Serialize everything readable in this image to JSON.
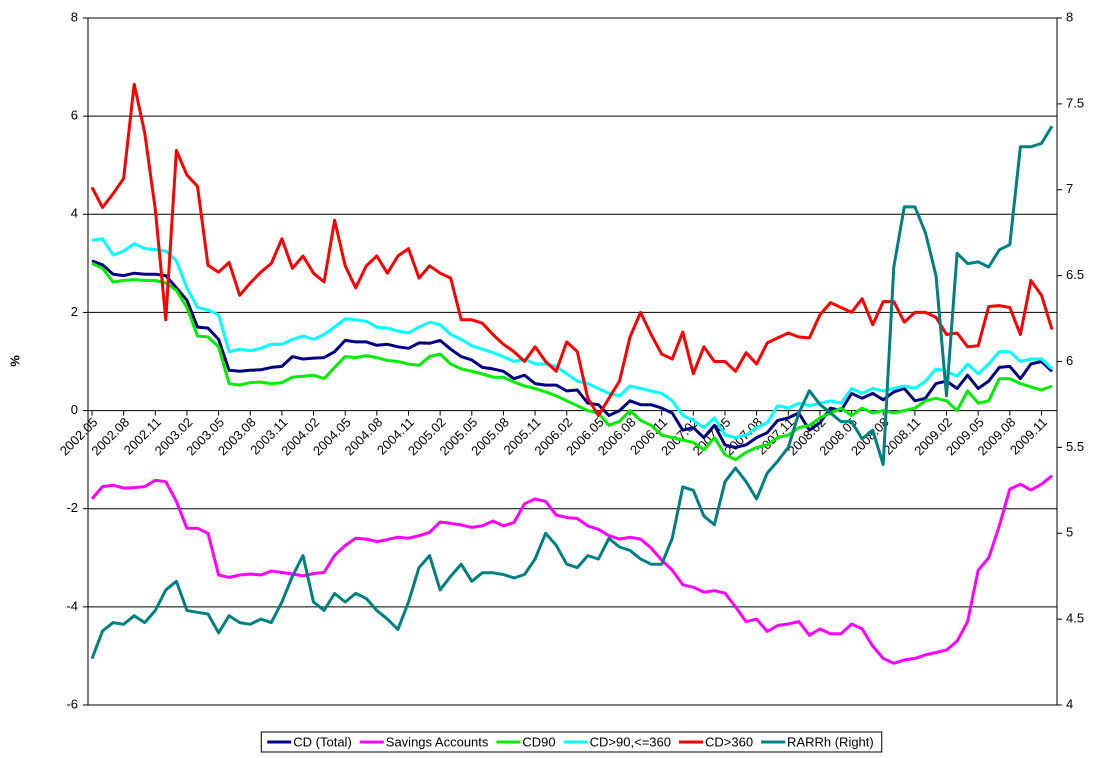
{
  "chart_data": {
    "type": "line",
    "y_label": "%",
    "categories": [
      "2002.05",
      null,
      null,
      "2002.08",
      null,
      null,
      "2002.11",
      null,
      null,
      "2003.02",
      null,
      null,
      "2003.05",
      null,
      null,
      "2003.08",
      null,
      null,
      "2003.11",
      null,
      null,
      "2004.02",
      null,
      null,
      "2004.05",
      null,
      null,
      "2004.08",
      null,
      null,
      "2004.11",
      null,
      null,
      "2005.02",
      null,
      null,
      "2005.05",
      null,
      null,
      "2005.08",
      null,
      null,
      "2005.11",
      null,
      null,
      "2006.02",
      null,
      null,
      "2006.05",
      null,
      null,
      "2006.08",
      null,
      null,
      "2006.11",
      null,
      null,
      "2007.02",
      null,
      null,
      "2007.05",
      null,
      null,
      "2007.08",
      null,
      null,
      "2007.11",
      null,
      null,
      "2008.02",
      null,
      null,
      "2008.05",
      null,
      null,
      "2008.08",
      null,
      null,
      "2008.11",
      null,
      null,
      "2009.02",
      null,
      null,
      "2009.05",
      null,
      null,
      "2009.08",
      null,
      null,
      "2009.11",
      null
    ],
    "ylim": [
      -6,
      8
    ],
    "yticks": [
      -6,
      -4,
      -2,
      0,
      2,
      4,
      6,
      8
    ],
    "y2lim": [
      4,
      8
    ],
    "y2ticks": [
      4,
      4.5,
      5,
      5.5,
      6,
      6.5,
      7,
      7.5,
      8
    ],
    "grid": true,
    "legend": "bottom",
    "series": [
      {
        "name": "CD (Total)",
        "color": "#000080",
        "values": [
          3.05,
          2.97,
          2.78,
          2.75,
          2.8,
          2.78,
          2.78,
          2.75,
          2.5,
          2.25,
          1.7,
          1.68,
          1.45,
          0.82,
          0.8,
          0.82,
          0.83,
          0.88,
          0.9,
          1.1,
          1.05,
          1.07,
          1.08,
          1.2,
          1.43,
          1.4,
          1.4,
          1.33,
          1.35,
          1.3,
          1.27,
          1.38,
          1.37,
          1.43,
          1.25,
          1.1,
          1.03,
          0.88,
          0.85,
          0.8,
          0.65,
          0.72,
          0.55,
          0.52,
          0.52,
          0.4,
          0.42,
          0.15,
          0.12,
          -0.1,
          0.0,
          0.2,
          0.12,
          0.12,
          0.05,
          -0.05,
          -0.4,
          -0.35,
          -0.55,
          -0.3,
          -0.7,
          -0.75,
          -0.7,
          -0.55,
          -0.45,
          -0.2,
          -0.15,
          -0.05,
          -0.4,
          -0.25,
          0.05,
          0.0,
          0.35,
          0.25,
          0.35,
          0.22,
          0.38,
          0.45,
          0.2,
          0.25,
          0.55,
          0.6,
          0.45,
          0.72,
          0.45,
          0.6,
          0.88,
          0.9,
          0.65,
          0.95,
          1.0,
          0.8
        ]
      },
      {
        "name": "Savings Accounts",
        "color": "#ff00ff",
        "values": [
          -1.8,
          -1.55,
          -1.52,
          -1.58,
          -1.57,
          -1.55,
          -1.42,
          -1.45,
          -1.85,
          -2.4,
          -2.4,
          -2.5,
          -3.35,
          -3.4,
          -3.35,
          -3.33,
          -3.35,
          -3.27,
          -3.3,
          -3.33,
          -3.37,
          -3.32,
          -3.3,
          -2.95,
          -2.75,
          -2.6,
          -2.62,
          -2.67,
          -2.63,
          -2.58,
          -2.6,
          -2.55,
          -2.48,
          -2.27,
          -2.3,
          -2.33,
          -2.38,
          -2.35,
          -2.25,
          -2.35,
          -2.28,
          -1.9,
          -1.8,
          -1.85,
          -2.13,
          -2.18,
          -2.2,
          -2.35,
          -2.42,
          -2.55,
          -2.62,
          -2.58,
          -2.62,
          -2.8,
          -3.05,
          -3.25,
          -3.55,
          -3.6,
          -3.7,
          -3.67,
          -3.72,
          -4.0,
          -4.3,
          -4.25,
          -4.5,
          -4.38,
          -4.35,
          -4.3,
          -4.58,
          -4.45,
          -4.55,
          -4.55,
          -4.35,
          -4.45,
          -4.8,
          -5.05,
          -5.15,
          -5.08,
          -5.05,
          -4.98,
          -4.93,
          -4.88,
          -4.7,
          -4.3,
          -3.25,
          -3.0,
          -2.35,
          -1.6,
          -1.5,
          -1.62,
          -1.5,
          -1.33
        ]
      },
      {
        "name": "CD90",
        "color": "#00ee00",
        "values": [
          3.0,
          2.9,
          2.62,
          2.65,
          2.67,
          2.65,
          2.65,
          2.6,
          2.45,
          2.1,
          1.52,
          1.5,
          1.3,
          0.55,
          0.52,
          0.57,
          0.58,
          0.55,
          0.57,
          0.68,
          0.7,
          0.72,
          0.65,
          0.88,
          1.1,
          1.08,
          1.12,
          1.08,
          1.02,
          1.0,
          0.95,
          0.92,
          1.1,
          1.15,
          0.95,
          0.85,
          0.8,
          0.75,
          0.68,
          0.68,
          0.58,
          0.5,
          0.45,
          0.38,
          0.3,
          0.2,
          0.1,
          0.0,
          -0.05,
          -0.3,
          -0.22,
          0.0,
          -0.2,
          -0.3,
          -0.5,
          -0.55,
          -0.6,
          -0.65,
          -0.8,
          -0.55,
          -0.9,
          -1.0,
          -0.85,
          -0.75,
          -0.7,
          -0.55,
          -0.5,
          -0.35,
          -0.3,
          -0.15,
          -0.05,
          0.05,
          -0.1,
          0.05,
          -0.05,
          0.0,
          -0.05,
          0.0,
          0.05,
          0.2,
          0.25,
          0.2,
          0.0,
          0.4,
          0.15,
          0.2,
          0.65,
          0.65,
          0.55,
          0.48,
          0.42,
          0.5
        ]
      },
      {
        "name": "CD>90,<=360",
        "color": "#00ffff",
        "values": [
          3.47,
          3.5,
          3.17,
          3.25,
          3.4,
          3.3,
          3.28,
          3.25,
          3.05,
          2.5,
          2.1,
          2.05,
          1.95,
          1.2,
          1.25,
          1.22,
          1.27,
          1.35,
          1.35,
          1.45,
          1.52,
          1.45,
          1.55,
          1.7,
          1.87,
          1.85,
          1.82,
          1.7,
          1.68,
          1.62,
          1.58,
          1.7,
          1.8,
          1.75,
          1.55,
          1.45,
          1.32,
          1.25,
          1.18,
          1.1,
          1.0,
          1.05,
          0.95,
          0.95,
          0.9,
          0.75,
          0.6,
          0.55,
          0.45,
          0.35,
          0.3,
          0.5,
          0.45,
          0.4,
          0.35,
          0.2,
          -0.1,
          -0.2,
          -0.35,
          -0.15,
          -0.5,
          -0.55,
          -0.5,
          -0.35,
          -0.25,
          0.1,
          0.05,
          0.15,
          0.1,
          0.15,
          0.2,
          0.15,
          0.45,
          0.35,
          0.45,
          0.4,
          0.45,
          0.5,
          0.45,
          0.6,
          0.85,
          0.8,
          0.7,
          0.95,
          0.75,
          0.95,
          1.2,
          1.2,
          1.0,
          1.05,
          1.05,
          0.85
        ]
      },
      {
        "name": "CD>360",
        "color": "#ff0000",
        "values": [
          4.55,
          4.14,
          4.42,
          4.73,
          6.65,
          5.66,
          4.1,
          1.85,
          5.3,
          4.8,
          4.57,
          2.96,
          2.82,
          3.02,
          2.35,
          2.6,
          2.82,
          3.0,
          3.5,
          2.9,
          3.15,
          2.8,
          2.62,
          3.88,
          2.95,
          2.5,
          2.95,
          3.15,
          2.8,
          3.15,
          3.3,
          2.7,
          2.95,
          2.8,
          2.7,
          1.85,
          1.85,
          1.78,
          1.55,
          1.35,
          1.2,
          1.0,
          1.3,
          1.0,
          0.8,
          1.4,
          1.2,
          0.25,
          -0.1,
          0.25,
          0.6,
          1.5,
          2.0,
          1.55,
          1.15,
          1.05,
          1.6,
          0.75,
          1.3,
          1.0,
          1.0,
          0.8,
          1.18,
          0.95,
          1.38,
          1.48,
          1.58,
          1.5,
          1.48,
          1.95,
          2.2,
          2.1,
          2.0,
          2.28,
          1.75,
          2.22,
          2.22,
          1.8,
          2.0,
          2.0,
          1.9,
          1.55,
          1.58,
          1.3,
          1.32,
          2.12,
          2.14,
          2.1,
          1.55,
          2.65,
          2.35,
          1.65
        ]
      },
      {
        "name": "RARRh (Right)",
        "color": "#008080",
        "axis": "y2",
        "values": [
          4.27,
          4.43,
          4.48,
          4.47,
          4.52,
          4.48,
          4.55,
          4.67,
          4.72,
          4.55,
          4.54,
          4.53,
          4.42,
          4.52,
          4.48,
          4.47,
          4.5,
          4.48,
          4.6,
          4.75,
          4.87,
          4.6,
          4.55,
          4.65,
          4.6,
          4.65,
          4.62,
          4.55,
          4.5,
          4.44,
          4.6,
          4.8,
          4.87,
          4.67,
          4.75,
          4.82,
          4.72,
          4.77,
          4.77,
          4.76,
          4.74,
          4.76,
          4.85,
          5.0,
          4.93,
          4.82,
          4.8,
          4.87,
          4.85,
          4.97,
          4.92,
          4.9,
          4.85,
          4.82,
          4.82,
          4.97,
          5.27,
          5.25,
          5.1,
          5.05,
          5.3,
          5.38,
          5.3,
          5.2,
          5.35,
          5.42,
          5.5,
          5.7,
          5.83,
          5.75,
          5.7,
          5.65,
          5.65,
          5.55,
          5.6,
          5.4,
          6.55,
          6.9,
          6.9,
          6.75,
          6.5,
          5.8,
          6.63,
          6.57,
          6.58,
          6.55,
          6.65,
          6.68,
          7.25,
          7.25,
          7.27,
          7.37
        ]
      }
    ]
  }
}
